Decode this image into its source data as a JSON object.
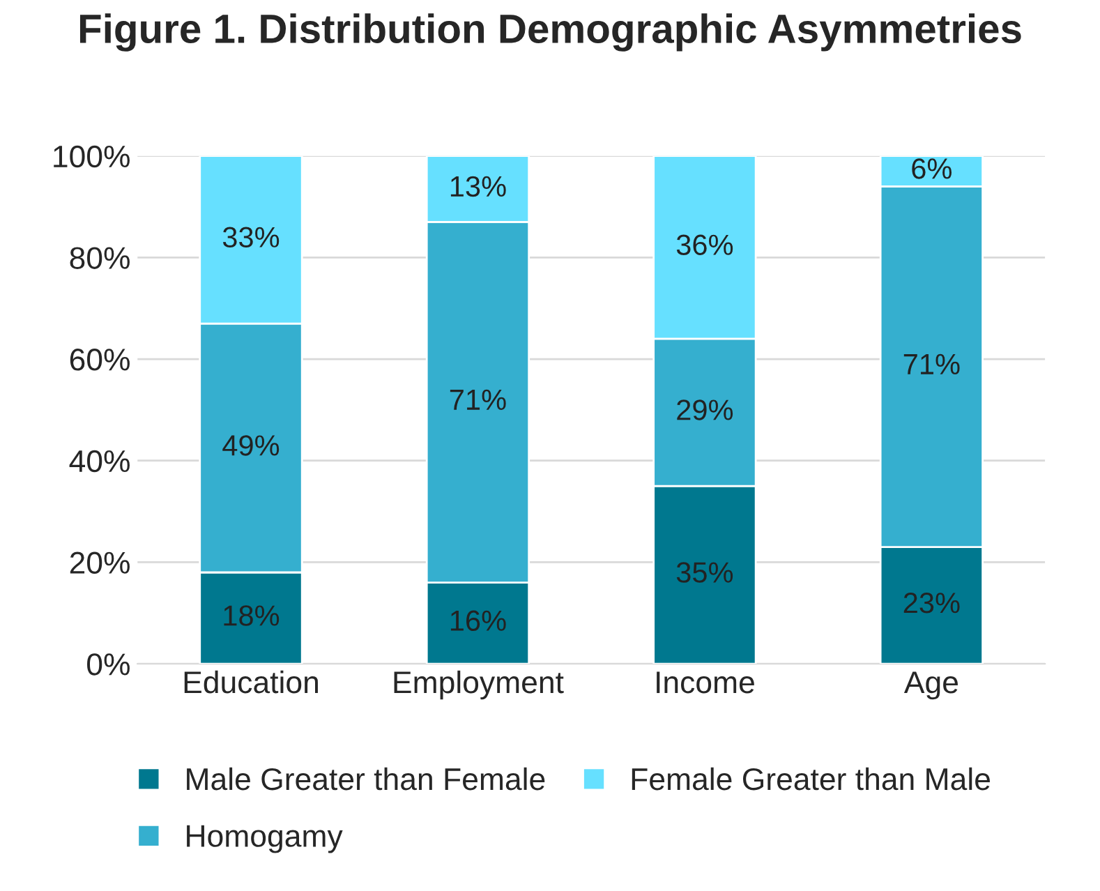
{
  "chart_data": {
    "type": "bar",
    "title": "Figure 1. Distribution Demographic Asymmetries",
    "categories": [
      "Education",
      "Employment",
      "Income",
      "Age"
    ],
    "stacked": true,
    "series": [
      {
        "name": "Male Greater than Female",
        "color": "#00788f",
        "values": [
          18,
          16,
          35,
          23
        ],
        "value_labels": [
          "18%",
          "16%",
          "35%",
          "23%"
        ]
      },
      {
        "name": "Homogamy",
        "color": "#35afcf",
        "values": [
          49,
          71,
          29,
          71
        ],
        "value_labels": [
          "49%",
          "71%",
          "29%",
          "71%"
        ]
      },
      {
        "name": "Female Greater than Male",
        "color": "#66e0ff",
        "values": [
          33,
          13,
          36,
          6
        ],
        "value_labels": [
          "33%",
          "13%",
          "36%",
          "6%"
        ]
      }
    ],
    "ylim": [
      0,
      100
    ],
    "yticks": [
      {
        "value": 0,
        "label": "0%"
      },
      {
        "value": 20,
        "label": "20%"
      },
      {
        "value": 40,
        "label": "40%"
      },
      {
        "value": 60,
        "label": "60%"
      },
      {
        "value": 80,
        "label": "80%"
      },
      {
        "value": 100,
        "label": "100%"
      }
    ],
    "grid": "y",
    "legend": "bottom"
  }
}
